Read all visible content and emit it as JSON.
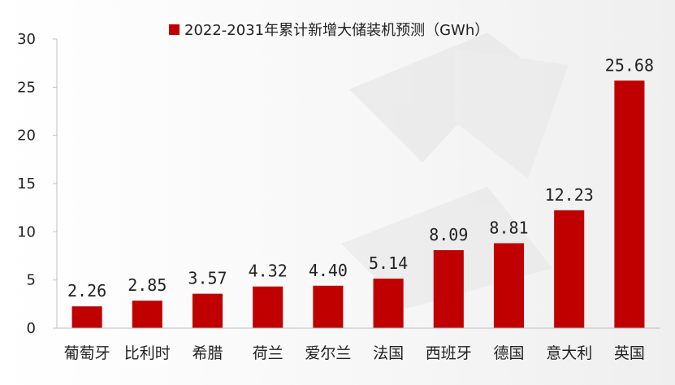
{
  "chart_data": {
    "type": "bar",
    "categories": [
      "葡萄牙",
      "比利时",
      "希腊",
      "荷兰",
      "爱尔兰",
      "法国",
      "西班牙",
      "德国",
      "意大利",
      "英国"
    ],
    "series": [
      {
        "name": "2022-2031年累计新增大储装机预测（GWh）",
        "values": [
          2.26,
          2.85,
          3.57,
          4.32,
          4.4,
          5.14,
          8.09,
          8.81,
          12.23,
          25.68
        ],
        "color": "#c00000"
      }
    ],
    "data_labels": [
      "2.26",
      "2.85",
      "3.57",
      "4.32",
      "4.40",
      "5.14",
      "8.09",
      "8.81",
      "12.23",
      "25.68"
    ],
    "y_ticks": [
      "0",
      "5",
      "10",
      "15",
      "20",
      "25",
      "30"
    ],
    "ylim": [
      0,
      30
    ],
    "grid": false,
    "legend_position": "top-center",
    "xlabel": "",
    "ylabel": ""
  }
}
